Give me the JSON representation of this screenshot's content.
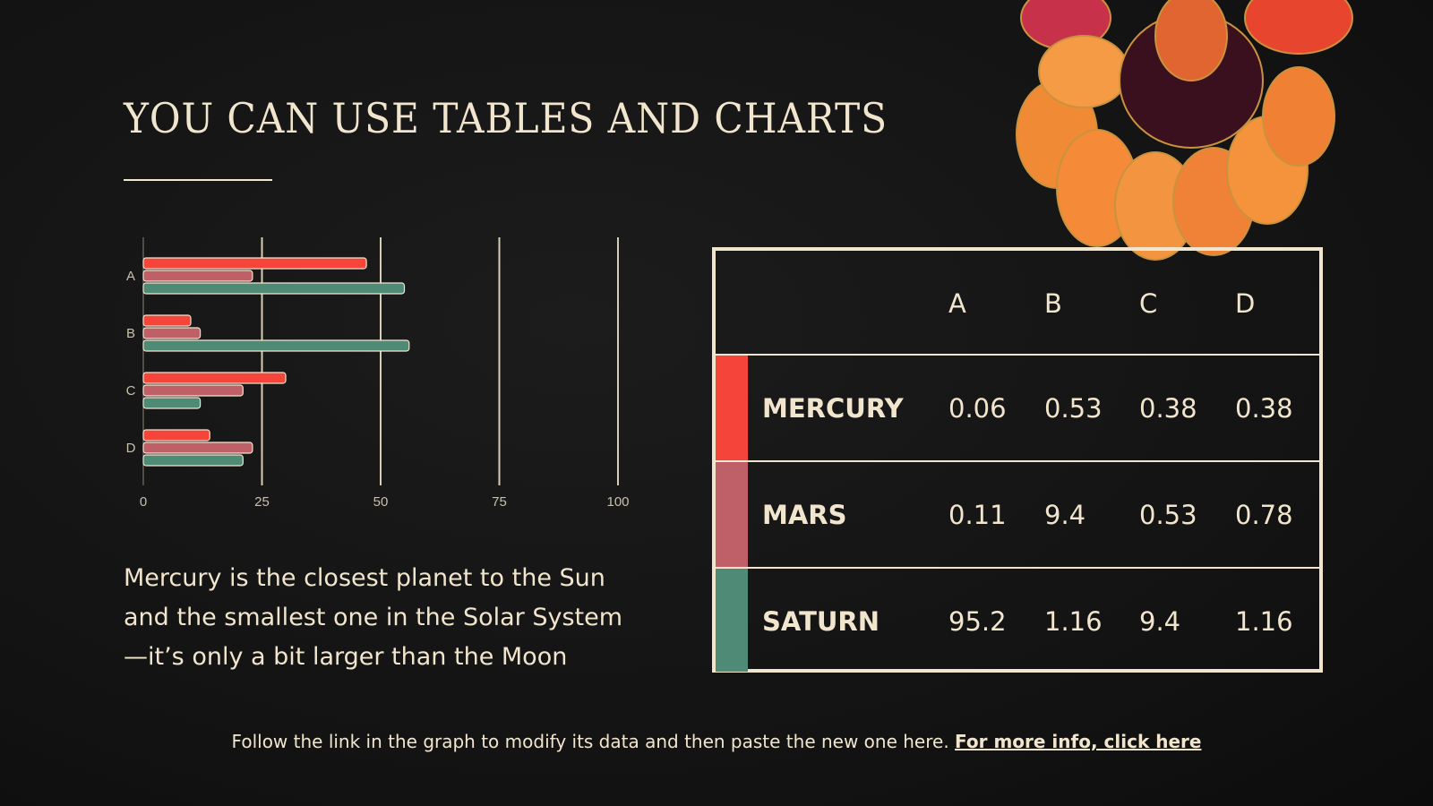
{
  "title": "YOU CAN USE TABLES AND CHARTS",
  "description": "Mercury is the closest planet to the Sun and the smallest one in the Solar System—it’s only a bit larger than the Moon",
  "footer": {
    "text": "Follow the link in the graph to modify its data and then paste the new one here.",
    "link": "For more info, click here"
  },
  "colors": {
    "red": "#f5453a",
    "pink": "#bf5f68",
    "green": "#4f8a77",
    "cream": "#f1e6cd",
    "background": "#141414"
  },
  "chart_data": {
    "type": "bar",
    "orientation": "horizontal",
    "categories": [
      "A",
      "B",
      "C",
      "D"
    ],
    "series": [
      {
        "color": "#f5453a",
        "values": [
          47,
          10,
          30,
          14
        ]
      },
      {
        "color": "#bf5f68",
        "values": [
          23,
          12,
          21,
          23
        ]
      },
      {
        "color": "#4f8a77",
        "values": [
          55,
          56,
          12,
          21
        ]
      }
    ],
    "xlim": [
      0,
      100
    ],
    "xticks": [
      "0",
      "25",
      "50",
      "75",
      "100"
    ],
    "grid": true,
    "legend": "none"
  },
  "table": {
    "headers": [
      "",
      "A",
      "B",
      "C",
      "D"
    ],
    "rows": [
      {
        "label": "MERCURY",
        "color": "#f5453a",
        "values": [
          "0.06",
          "0.53",
          "0.38",
          "0.38"
        ]
      },
      {
        "label": "MARS",
        "color": "#bf5f68",
        "values": [
          "0.11",
          "9.4",
          "0.53",
          "0.78"
        ]
      },
      {
        "label": "SATURN",
        "color": "#4f8a77",
        "values": [
          "95.2",
          "1.16",
          "9.4",
          "1.16"
        ]
      }
    ]
  }
}
